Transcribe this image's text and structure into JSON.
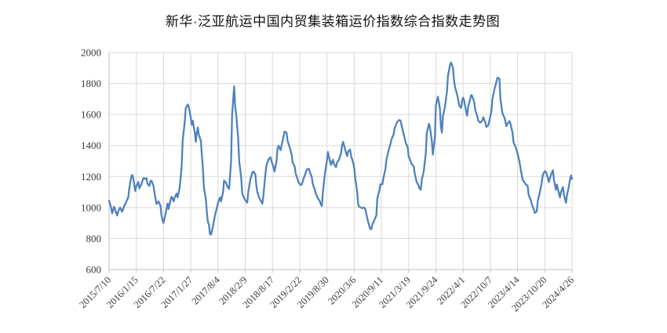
{
  "chart": {
    "title": "新华·泛亚航运中国内贸集装箱运价指数综合指数走势图"
  },
  "chart_data": {
    "type": "line",
    "title": "新华·泛亚航运中国内贸集装箱运价指数综合指数走势图",
    "xlabel": "",
    "ylabel": "",
    "y_axis": {
      "min": 600,
      "max": 2000,
      "step": 200
    },
    "grid": {
      "horizontal": true,
      "vertical": true,
      "color": "#d9d9d9"
    },
    "axis_color": "#bfbfbf",
    "label_color": "#3a3a3a",
    "x_tick_labels": [
      "2015/7/10",
      "2016/1/15",
      "2016/7/22",
      "2017/1/27",
      "2017/8/4",
      "2018/2/9",
      "2018/8/17",
      "2019/2/22",
      "2019/8/30",
      "2020/3/6",
      "2020/9/11",
      "2021/3/19",
      "2021/9/24",
      "2022/4/1",
      "2022/10/7",
      "2023/4/14",
      "2023/10/20",
      "2024/4/26"
    ],
    "x_tick_weeks": [
      0,
      27,
      54,
      81,
      108,
      135,
      162,
      189,
      216,
      243,
      270,
      297,
      324,
      351,
      378,
      405,
      432,
      459
    ],
    "series": [
      {
        "name": "综合指数",
        "color": "#4f81bd",
        "points": [
          [
            0,
            1045
          ],
          [
            2,
            1000
          ],
          [
            3,
            962
          ],
          [
            5,
            1005
          ],
          [
            6,
            985
          ],
          [
            8,
            948
          ],
          [
            9,
            975
          ],
          [
            11,
            1000
          ],
          [
            12,
            985
          ],
          [
            13,
            973
          ],
          [
            15,
            1010
          ],
          [
            16,
            1023
          ],
          [
            19,
            1065
          ],
          [
            20,
            1120
          ],
          [
            22,
            1200
          ],
          [
            23,
            1210
          ],
          [
            24,
            1190
          ],
          [
            26,
            1107
          ],
          [
            27,
            1135
          ],
          [
            29,
            1165
          ],
          [
            30,
            1123
          ],
          [
            32,
            1150
          ],
          [
            34,
            1190
          ],
          [
            36,
            1185
          ],
          [
            37,
            1190
          ],
          [
            38,
            1155
          ],
          [
            40,
            1140
          ],
          [
            41,
            1170
          ],
          [
            42,
            1173
          ],
          [
            44,
            1140
          ],
          [
            45,
            1098
          ],
          [
            46,
            1060
          ],
          [
            47,
            1023
          ],
          [
            49,
            1040
          ],
          [
            51,
            1010
          ],
          [
            52,
            948
          ],
          [
            53,
            920
          ],
          [
            54,
            900
          ],
          [
            56,
            960
          ],
          [
            58,
            1025
          ],
          [
            59,
            990
          ],
          [
            61,
            1050
          ],
          [
            62,
            1070
          ],
          [
            64,
            1040
          ],
          [
            65,
            1065
          ],
          [
            67,
            1090
          ],
          [
            68,
            1065
          ],
          [
            70,
            1130
          ],
          [
            72,
            1266
          ],
          [
            73,
            1432
          ],
          [
            75,
            1550
          ],
          [
            76,
            1640
          ],
          [
            78,
            1665
          ],
          [
            79,
            1650
          ],
          [
            81,
            1580
          ],
          [
            82,
            1533
          ],
          [
            83,
            1560
          ],
          [
            85,
            1480
          ],
          [
            86,
            1424
          ],
          [
            87,
            1480
          ],
          [
            88,
            1517
          ],
          [
            89,
            1470
          ],
          [
            91,
            1430
          ],
          [
            92,
            1333
          ],
          [
            93,
            1260
          ],
          [
            94,
            1132
          ],
          [
            96,
            1050
          ],
          [
            97,
            965
          ],
          [
            98,
            906
          ],
          [
            99,
            890
          ],
          [
            100,
            830
          ],
          [
            101,
            825
          ],
          [
            102,
            850
          ],
          [
            103,
            880
          ],
          [
            105,
            950
          ],
          [
            107,
            1000
          ],
          [
            108,
            1030
          ],
          [
            110,
            1065
          ],
          [
            111,
            1040
          ],
          [
            113,
            1100
          ],
          [
            114,
            1174
          ],
          [
            116,
            1160
          ],
          [
            117,
            1140
          ],
          [
            119,
            1120
          ],
          [
            121,
            1300
          ],
          [
            122,
            1600
          ],
          [
            124,
            1781
          ],
          [
            125,
            1650
          ],
          [
            126,
            1600
          ],
          [
            128,
            1450
          ],
          [
            129,
            1300
          ],
          [
            131,
            1191
          ],
          [
            132,
            1090
          ],
          [
            134,
            1060
          ],
          [
            135,
            1048
          ],
          [
            137,
            1031
          ],
          [
            138,
            1100
          ],
          [
            140,
            1180
          ],
          [
            142,
            1225
          ],
          [
            143,
            1232
          ],
          [
            145,
            1215
          ],
          [
            146,
            1140
          ],
          [
            147,
            1098
          ],
          [
            149,
            1060
          ],
          [
            150,
            1048
          ],
          [
            152,
            1025
          ],
          [
            153,
            1080
          ],
          [
            155,
            1215
          ],
          [
            156,
            1270
          ],
          [
            158,
            1310
          ],
          [
            160,
            1325
          ],
          [
            161,
            1300
          ],
          [
            163,
            1260
          ],
          [
            164,
            1232
          ],
          [
            166,
            1300
          ],
          [
            167,
            1380
          ],
          [
            168,
            1399
          ],
          [
            170,
            1370
          ],
          [
            171,
            1400
          ],
          [
            173,
            1460
          ],
          [
            174,
            1490
          ],
          [
            176,
            1483
          ],
          [
            177,
            1430
          ],
          [
            179,
            1390
          ],
          [
            181,
            1340
          ],
          [
            182,
            1290
          ],
          [
            184,
            1266
          ],
          [
            185,
            1220
          ],
          [
            187,
            1180
          ],
          [
            188,
            1160
          ],
          [
            190,
            1145
          ],
          [
            191,
            1149
          ],
          [
            193,
            1190
          ],
          [
            195,
            1225
          ],
          [
            196,
            1245
          ],
          [
            198,
            1250
          ],
          [
            199,
            1230
          ],
          [
            201,
            1195
          ],
          [
            202,
            1150
          ],
          [
            204,
            1115
          ],
          [
            205,
            1090
          ],
          [
            207,
            1060
          ],
          [
            209,
            1040
          ],
          [
            210,
            1020
          ],
          [
            211,
            1010
          ],
          [
            212,
            1100
          ],
          [
            214,
            1220
          ],
          [
            216,
            1300
          ],
          [
            217,
            1358
          ],
          [
            219,
            1300
          ],
          [
            220,
            1274
          ],
          [
            221,
            1295
          ],
          [
            222,
            1308
          ],
          [
            223,
            1280
          ],
          [
            225,
            1260
          ],
          [
            226,
            1290
          ],
          [
            228,
            1310
          ],
          [
            230,
            1350
          ],
          [
            231,
            1400
          ],
          [
            232,
            1424
          ],
          [
            233,
            1400
          ],
          [
            235,
            1350
          ],
          [
            236,
            1332
          ],
          [
            237,
            1360
          ],
          [
            239,
            1374
          ],
          [
            240,
            1330
          ],
          [
            242,
            1290
          ],
          [
            243,
            1255
          ],
          [
            244,
            1195
          ],
          [
            246,
            1100
          ],
          [
            247,
            1020
          ],
          [
            248,
            1005
          ],
          [
            250,
            1000
          ],
          [
            251,
            995
          ],
          [
            253,
            1000
          ],
          [
            254,
            990
          ],
          [
            256,
            930
          ],
          [
            258,
            880
          ],
          [
            259,
            862
          ],
          [
            260,
            860
          ],
          [
            261,
            890
          ],
          [
            263,
            920
          ],
          [
            265,
            948
          ],
          [
            266,
            1060
          ],
          [
            268,
            1110
          ],
          [
            269,
            1150
          ],
          [
            271,
            1150
          ],
          [
            272,
            1190
          ],
          [
            274,
            1250
          ],
          [
            275,
            1310
          ],
          [
            277,
            1366
          ],
          [
            279,
            1410
          ],
          [
            280,
            1440
          ],
          [
            282,
            1470
          ],
          [
            283,
            1510
          ],
          [
            285,
            1542
          ],
          [
            286,
            1555
          ],
          [
            288,
            1565
          ],
          [
            289,
            1560
          ],
          [
            291,
            1500
          ],
          [
            293,
            1450
          ],
          [
            294,
            1420
          ],
          [
            296,
            1390
          ],
          [
            297,
            1330
          ],
          [
            299,
            1299
          ],
          [
            300,
            1280
          ],
          [
            302,
            1266
          ],
          [
            303,
            1220
          ],
          [
            305,
            1165
          ],
          [
            307,
            1140
          ],
          [
            308,
            1120
          ],
          [
            309,
            1115
          ],
          [
            310,
            1180
          ],
          [
            312,
            1232
          ],
          [
            314,
            1350
          ],
          [
            315,
            1480
          ],
          [
            317,
            1540
          ],
          [
            318,
            1520
          ],
          [
            320,
            1430
          ],
          [
            321,
            1341
          ],
          [
            323,
            1450
          ],
          [
            324,
            1659
          ],
          [
            326,
            1715
          ],
          [
            328,
            1640
          ],
          [
            329,
            1520
          ],
          [
            330,
            1483
          ],
          [
            331,
            1590
          ],
          [
            333,
            1650
          ],
          [
            335,
            1750
          ],
          [
            336,
            1850
          ],
          [
            338,
            1920
          ],
          [
            339,
            1936
          ],
          [
            341,
            1900
          ],
          [
            342,
            1820
          ],
          [
            343,
            1776
          ],
          [
            345,
            1730
          ],
          [
            346,
            1701
          ],
          [
            347,
            1660
          ],
          [
            349,
            1642
          ],
          [
            350,
            1690
          ],
          [
            351,
            1709
          ],
          [
            352,
            1690
          ],
          [
            354,
            1620
          ],
          [
            355,
            1592
          ],
          [
            356,
            1650
          ],
          [
            358,
            1700
          ],
          [
            359,
            1726
          ],
          [
            360,
            1720
          ],
          [
            362,
            1680
          ],
          [
            363,
            1630
          ],
          [
            365,
            1590
          ],
          [
            366,
            1560
          ],
          [
            368,
            1547
          ],
          [
            370,
            1560
          ],
          [
            371,
            1583
          ],
          [
            373,
            1550
          ],
          [
            374,
            1520
          ],
          [
            376,
            1530
          ],
          [
            377,
            1560
          ],
          [
            379,
            1620
          ],
          [
            380,
            1700
          ],
          [
            382,
            1760
          ],
          [
            384,
            1810
          ],
          [
            385,
            1838
          ],
          [
            387,
            1830
          ],
          [
            388,
            1700
          ],
          [
            390,
            1610
          ],
          [
            391,
            1592
          ],
          [
            392,
            1580
          ],
          [
            394,
            1525
          ],
          [
            395,
            1540
          ],
          [
            397,
            1558
          ],
          [
            398,
            1540
          ],
          [
            400,
            1480
          ],
          [
            401,
            1420
          ],
          [
            403,
            1390
          ],
          [
            405,
            1349
          ],
          [
            407,
            1290
          ],
          [
            408,
            1250
          ],
          [
            410,
            1180
          ],
          [
            412,
            1160
          ],
          [
            413,
            1150
          ],
          [
            415,
            1140
          ],
          [
            416,
            1080
          ],
          [
            418,
            1050
          ],
          [
            419,
            1023
          ],
          [
            421,
            990
          ],
          [
            422,
            965
          ],
          [
            424,
            975
          ],
          [
            425,
            1040
          ],
          [
            427,
            1098
          ],
          [
            429,
            1160
          ],
          [
            430,
            1210
          ],
          [
            432,
            1235
          ],
          [
            433,
            1230
          ],
          [
            435,
            1190
          ],
          [
            436,
            1165
          ],
          [
            438,
            1210
          ],
          [
            440,
            1240
          ],
          [
            441,
            1180
          ],
          [
            443,
            1115
          ],
          [
            444,
            1149
          ],
          [
            446,
            1090
          ],
          [
            447,
            1065
          ],
          [
            448,
            1100
          ],
          [
            450,
            1132
          ],
          [
            451,
            1080
          ],
          [
            453,
            1031
          ],
          [
            454,
            1080
          ],
          [
            456,
            1140
          ],
          [
            457,
            1182
          ],
          [
            458,
            1207
          ],
          [
            459,
            1185
          ]
        ]
      }
    ]
  }
}
